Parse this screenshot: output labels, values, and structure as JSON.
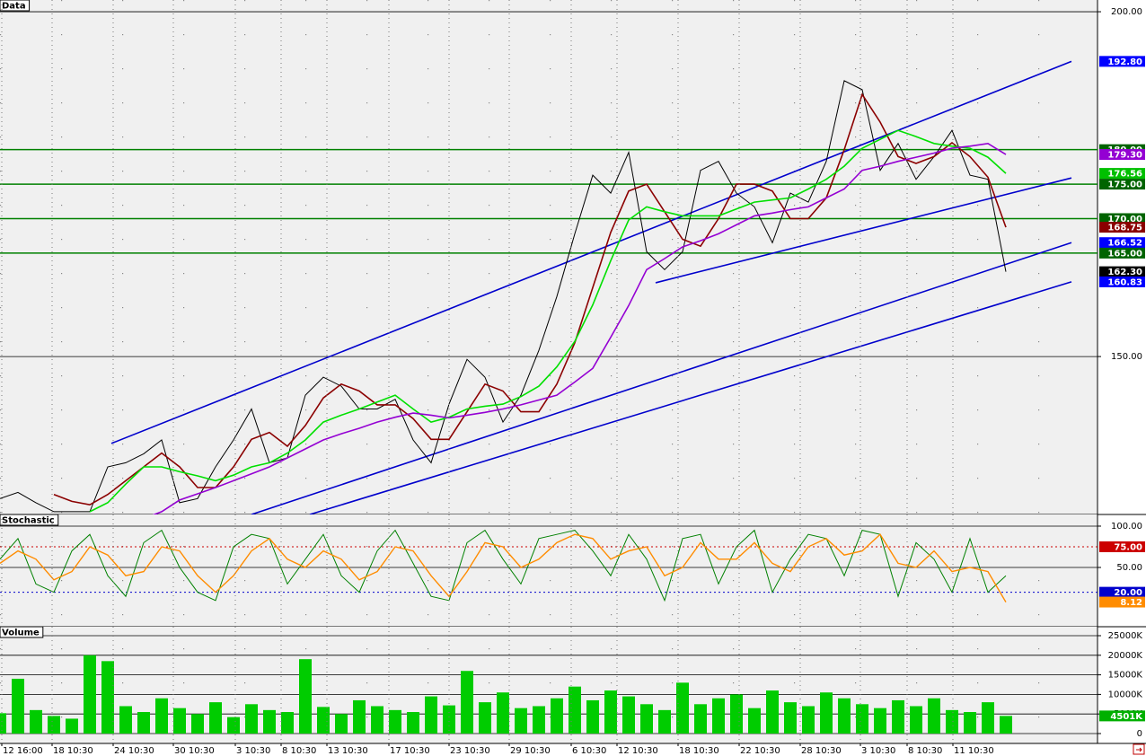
{
  "chart_data": [
    {
      "type": "line",
      "title": "Data",
      "x": [
        0,
        1,
        2,
        3,
        4,
        5,
        6,
        7,
        8,
        9,
        10,
        11,
        12,
        13,
        14,
        15,
        16,
        17,
        18,
        19,
        20,
        21,
        22,
        23,
        24,
        25,
        26,
        27,
        28,
        29,
        30,
        31,
        32,
        33,
        34,
        35,
        36,
        37,
        38,
        39,
        40,
        41,
        42,
        43,
        44,
        45,
        46,
        47,
        48,
        49,
        50,
        51,
        52,
        53,
        54,
        55,
        56
      ],
      "xlim": [
        0,
        61.1
      ],
      "ylim": [
        127.1,
        201.7
      ],
      "yticks": [
        {
          "value": 200,
          "label": "200.00"
        },
        {
          "value": 150,
          "label": "150.00"
        }
      ],
      "grid": true,
      "series": [
        {
          "color": "#000000",
          "width": 1,
          "values": [
            129.4,
            130.3,
            128.8,
            127.5,
            127.5,
            127.5,
            134.0,
            134.6,
            135.9,
            137.9,
            128.8,
            129.4,
            134.0,
            137.9,
            142.4,
            134.6,
            135.3,
            144.4,
            147.0,
            145.7,
            142.4,
            142.4,
            143.8,
            137.9,
            134.6,
            143.1,
            149.6,
            147.0,
            140.5,
            144.4,
            150.9,
            158.7,
            167.8,
            176.3,
            173.7,
            179.6,
            165.2,
            162.6,
            165.2,
            177.0,
            178.3,
            173.7,
            171.7,
            166.5,
            173.7,
            172.4,
            178.3,
            190.0,
            188.7,
            177.0,
            180.9,
            175.7,
            179.0,
            182.8,
            176.3,
            175.7,
            162.3
          ]
        },
        {
          "color": "#8b0000",
          "width": 1.6,
          "values": [
            null,
            null,
            null,
            130,
            129,
            128.5,
            130,
            132,
            134,
            136,
            134,
            131,
            131,
            134,
            138,
            139,
            137,
            140,
            144,
            146,
            145,
            143,
            143,
            141,
            138,
            138,
            142,
            146,
            145,
            142,
            142,
            146,
            152,
            160,
            168,
            174,
            175,
            171,
            167,
            166,
            170,
            175,
            175,
            174,
            170,
            170,
            173,
            180,
            188,
            184,
            179,
            178,
            179,
            181,
            179,
            176,
            168.75
          ]
        },
        {
          "color": "#00e000",
          "width": 1.6,
          "values": [
            null,
            null,
            null,
            null,
            null,
            127.5,
            128.8,
            131.5,
            134.0,
            134.0,
            133.3,
            132.7,
            132.0,
            132.8,
            134.0,
            134.6,
            136.0,
            137.9,
            140.5,
            141.5,
            142.4,
            143.4,
            144.4,
            142.4,
            140.5,
            141.2,
            142.4,
            142.8,
            143.1,
            144.2,
            145.7,
            148.5,
            152.2,
            157.5,
            163.9,
            169.8,
            171.7,
            171.0,
            170.4,
            170.4,
            170.4,
            171.4,
            172.4,
            172.7,
            173.0,
            174.3,
            175.7,
            177.6,
            180.2,
            181.5,
            182.8,
            181.9,
            180.9,
            180.5,
            180.2,
            178.9,
            176.56
          ]
        },
        {
          "color": "#9400d3",
          "width": 1.6,
          "values": [
            null,
            null,
            null,
            null,
            null,
            null,
            null,
            null,
            126.5,
            127.5,
            129.2,
            130.1,
            131.0,
            132.0,
            133.0,
            134.0,
            135.3,
            136.6,
            137.9,
            138.8,
            139.6,
            140.5,
            141.2,
            141.8,
            141.5,
            141.1,
            141.5,
            141.9,
            142.4,
            143.0,
            143.7,
            144.4,
            146.3,
            148.3,
            152.8,
            157.4,
            162.6,
            164.2,
            165.9,
            166.8,
            167.8,
            169.1,
            170.4,
            170.8,
            171.3,
            171.7,
            173.0,
            174.3,
            177.0,
            177.6,
            178.3,
            178.9,
            179.5,
            180.2,
            180.5,
            180.9,
            179.3
          ]
        }
      ],
      "levels": [
        {
          "value": 180,
          "color": "#008000"
        },
        {
          "value": 175,
          "color": "#008000"
        },
        {
          "value": 170,
          "color": "#008000"
        },
        {
          "value": 165,
          "color": "#008000"
        }
      ],
      "trendlines": [
        {
          "color": "#0000cc",
          "x": [
            6.2,
            59.65
          ],
          "y": [
            137.4,
            192.8
          ]
        },
        {
          "color": "#0000cc",
          "x": [
            14,
            59.65
          ],
          "y": [
            127.1,
            166.52
          ]
        },
        {
          "color": "#0000cc",
          "x": [
            17.25,
            59.65
          ],
          "y": [
            127.1,
            160.83
          ]
        },
        {
          "color": "#0000cc",
          "x": [
            36.5,
            59.65
          ],
          "y": [
            160.7,
            175.9
          ]
        }
      ],
      "price_labels": [
        {
          "value": 192.8,
          "label": "192.80",
          "color": "#0000ff"
        },
        {
          "value": 180,
          "label": "180.00",
          "color": "#006400"
        },
        {
          "value": 179.3,
          "label": "179.30",
          "color": "#9400d3"
        },
        {
          "value": 176.56,
          "label": "176.56",
          "color": "#00c000"
        },
        {
          "value": 175,
          "label": "175.00",
          "color": "#006400"
        },
        {
          "value": 170,
          "label": "170.00",
          "color": "#006400"
        },
        {
          "value": 168.75,
          "label": "168.75",
          "color": "#8b0000"
        },
        {
          "value": 166.52,
          "label": "166.52",
          "color": "#0000ff"
        },
        {
          "value": 165,
          "label": "165.00",
          "color": "#006400"
        },
        {
          "value": 162.3,
          "label": "162.30",
          "color": "#000000"
        },
        {
          "value": 160.83,
          "label": "160.83",
          "color": "#0000ff"
        }
      ]
    },
    {
      "type": "line",
      "title": "Stochastic",
      "x": [
        0,
        1,
        2,
        3,
        4,
        5,
        6,
        7,
        8,
        9,
        10,
        11,
        12,
        13,
        14,
        15,
        16,
        17,
        18,
        19,
        20,
        21,
        22,
        23,
        24,
        25,
        26,
        27,
        28,
        29,
        30,
        31,
        32,
        33,
        34,
        35,
        36,
        37,
        38,
        39,
        40,
        41,
        42,
        43,
        44,
        45,
        46,
        47,
        48,
        49,
        50,
        51,
        52,
        53,
        54,
        55,
        56
      ],
      "xlim": [
        0,
        61.1
      ],
      "ylim": [
        -21.7,
        114.1
      ],
      "yticks": [
        {
          "value": 100,
          "label": "100.00"
        },
        {
          "value": 50,
          "label": "50.00"
        }
      ],
      "grid": true,
      "series": [
        {
          "color": "#008000",
          "width": 1,
          "values": [
            60,
            85,
            30,
            20,
            70,
            90,
            40,
            15,
            80,
            95,
            50,
            20,
            10,
            75,
            90,
            85,
            30,
            60,
            90,
            40,
            20,
            70,
            95,
            55,
            15,
            10,
            80,
            95,
            60,
            30,
            85,
            90,
            95,
            70,
            40,
            90,
            60,
            10,
            85,
            90,
            30,
            75,
            95,
            20,
            60,
            90,
            85,
            40,
            95,
            90,
            15,
            80,
            60,
            20,
            85,
            20,
            40
          ]
        },
        {
          "color": "#ff8c00",
          "width": 1.4,
          "values": [
            55,
            70,
            60,
            35,
            45,
            75,
            65,
            40,
            45,
            75,
            70,
            40,
            20,
            40,
            70,
            85,
            60,
            50,
            70,
            60,
            35,
            45,
            75,
            70,
            40,
            15,
            45,
            80,
            75,
            50,
            60,
            80,
            90,
            85,
            60,
            70,
            75,
            40,
            50,
            80,
            60,
            60,
            80,
            55,
            45,
            75,
            85,
            65,
            70,
            90,
            55,
            50,
            70,
            45,
            50,
            45,
            8.12
          ]
        }
      ],
      "levels": [
        {
          "value": 75,
          "color": "#cc0000",
          "style": "dotted"
        },
        {
          "value": 20,
          "color": "#0000cc",
          "style": "dotted"
        }
      ],
      "price_labels": [
        {
          "value": 75,
          "label": "75.00",
          "color": "#cc0000"
        },
        {
          "value": 20,
          "label": "20.00",
          "color": "#0000cc"
        },
        {
          "value": 8.12,
          "label": "8.12",
          "color": "#ff8c00"
        }
      ]
    },
    {
      "type": "bar",
      "title": "Volume",
      "x": [
        0,
        1,
        2,
        3,
        4,
        5,
        6,
        7,
        8,
        9,
        10,
        11,
        12,
        13,
        14,
        15,
        16,
        17,
        18,
        19,
        20,
        21,
        22,
        23,
        24,
        25,
        26,
        27,
        28,
        29,
        30,
        31,
        32,
        33,
        34,
        35,
        36,
        37,
        38,
        39,
        40,
        41,
        42,
        43,
        44,
        45,
        46,
        47,
        48,
        49,
        50,
        51,
        52,
        53,
        54,
        55,
        56
      ],
      "xlim": [
        0,
        61.1
      ],
      "ylim": [
        -2523,
        27294
      ],
      "color": "#00cc00",
      "values": [
        5200,
        14000,
        6000,
        4500,
        3800,
        20000,
        18500,
        7000,
        5500,
        9000,
        6500,
        5000,
        8000,
        4200,
        7500,
        6000,
        5500,
        19000,
        6800,
        5000,
        8500,
        7000,
        6000,
        5500,
        9500,
        7200,
        16000,
        8000,
        10500,
        6500,
        7000,
        9000,
        12000,
        8500,
        11000,
        9500,
        7500,
        6000,
        13000,
        7500,
        9000,
        10000,
        6500,
        11000,
        8000,
        7000,
        10500,
        9000,
        7500,
        6500,
        8500,
        7000,
        9000,
        6000,
        5500,
        8000,
        4501
      ],
      "yticks": [
        {
          "value": 25000,
          "label": "25000K"
        },
        {
          "value": 20000,
          "label": "20000K"
        },
        {
          "value": 15000,
          "label": "15000K"
        },
        {
          "value": 10000,
          "label": "10000K"
        },
        {
          "value": 5000,
          "label": "5000K"
        },
        0
      ],
      "grid": true,
      "price_labels": [
        {
          "value": 4501,
          "label": "4501K",
          "color": "#00b000"
        }
      ],
      "xticks": [
        {
          "value": 0.1,
          "label": "12 16:00"
        },
        {
          "value": 2.9,
          "label": "18 10:30"
        },
        {
          "value": 6.3,
          "label": "24 10:30"
        },
        {
          "value": 9.65,
          "label": "30 10:30"
        },
        {
          "value": 13.1,
          "label": "3 10:30"
        },
        {
          "value": 15.65,
          "label": "8 10:30"
        },
        {
          "value": 18.2,
          "label": "13 10:30"
        },
        {
          "value": 21.65,
          "label": "17 10:30"
        },
        {
          "value": 25,
          "label": "23 10:30"
        },
        {
          "value": 28.35,
          "label": "29 10:30"
        },
        {
          "value": 31.8,
          "label": "6 10:30"
        },
        {
          "value": 34.35,
          "label": "12 10:30"
        },
        {
          "value": 37.75,
          "label": "18 10:30"
        },
        {
          "value": 41.15,
          "label": "22 10:30"
        },
        {
          "value": 44.55,
          "label": "28 10:30"
        },
        {
          "value": 47.9,
          "label": "3 10:30"
        },
        {
          "value": 50.5,
          "label": "8 10:30"
        },
        {
          "value": 53.05,
          "label": "11 10:30"
        }
      ]
    }
  ]
}
